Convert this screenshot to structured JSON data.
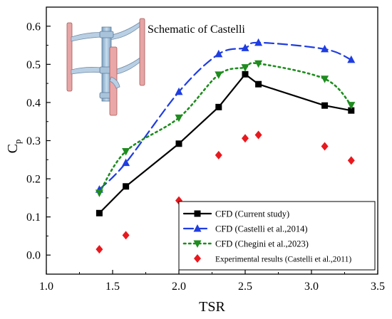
{
  "chart_data": {
    "type": "line",
    "xlabel": "TSR",
    "ylabel": "C",
    "ylabel_subscript": "p",
    "xlim": [
      1.0,
      3.5
    ],
    "ylim": [
      -0.05,
      0.65
    ],
    "x_ticks": [
      "1.0",
      "1.5",
      "2.0",
      "2.5",
      "3.0",
      "3.5"
    ],
    "y_ticks": [
      "0.0",
      "0.1",
      "0.2",
      "0.3",
      "0.4",
      "0.5",
      "0.6"
    ],
    "grid": false,
    "legend_position": "bottom-right",
    "inset_caption": "Schematic of Castelli",
    "series": [
      {
        "name": "CFD (Current study)",
        "color": "#000000",
        "line": "solid",
        "marker": "square",
        "x": [
          1.4,
          1.6,
          2.0,
          2.3,
          2.5,
          2.6,
          3.1,
          3.3
        ],
        "y": [
          0.11,
          0.18,
          0.292,
          0.388,
          0.474,
          0.448,
          0.392,
          0.379
        ]
      },
      {
        "name": "CFD (Castelli et al.,2014)",
        "color": "#1f3de0",
        "line": "dashed",
        "marker": "triangle-up",
        "x": [
          1.4,
          1.6,
          2.0,
          2.3,
          2.5,
          2.6,
          3.1,
          3.3
        ],
        "y": [
          0.172,
          0.242,
          0.428,
          0.527,
          0.543,
          0.557,
          0.54,
          0.512
        ]
      },
      {
        "name": "CFD (Chegini et al.,2023)",
        "color": "#1e8c1e",
        "line": "dotted",
        "marker": "triangle-down",
        "x": [
          1.4,
          1.6,
          2.0,
          2.3,
          2.5,
          2.6,
          3.1,
          3.3
        ],
        "y": [
          0.163,
          0.272,
          0.36,
          0.473,
          0.492,
          0.502,
          0.462,
          0.393
        ]
      },
      {
        "name": "Experimental results (Castelli et al.,2011)",
        "color": "#e8191e",
        "line": "none",
        "marker": "diamond",
        "x": [
          1.4,
          1.6,
          2.0,
          2.3,
          2.5,
          2.6,
          3.1,
          3.3
        ],
        "y": [
          0.015,
          0.052,
          0.143,
          0.262,
          0.306,
          0.315,
          0.285,
          0.248
        ]
      }
    ]
  }
}
